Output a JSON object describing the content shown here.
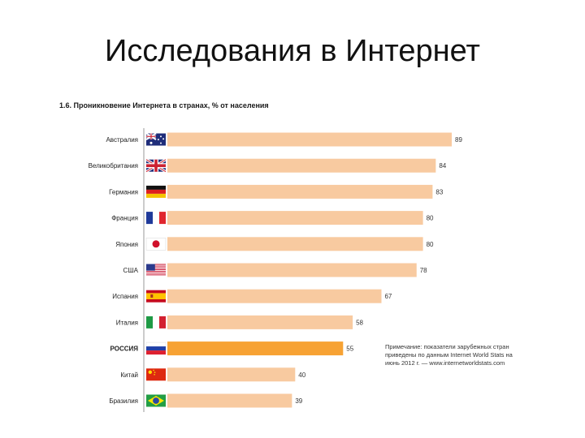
{
  "slide": {
    "title": "Исследования в Интернет"
  },
  "chart_note": "Примечание: показатели зарубежных стран приведены по данным Internet World Stats на июнь 2012 г. — www.internetworldstats.com",
  "colors": {
    "bar": "#f8caa0",
    "highlight": "#f7a233",
    "axis": "#999999"
  },
  "chart_data": {
    "type": "bar",
    "orientation": "horizontal",
    "title": "1.6. Проникновение Интернета в странах, % от населения",
    "xlabel": "",
    "ylabel": "",
    "xlim": [
      0,
      100
    ],
    "grid": false,
    "categories": [
      "Австралия",
      "Великобритания",
      "Германия",
      "Франция",
      "Япония",
      "США",
      "Испания",
      "Италия",
      "РОССИЯ",
      "Китай",
      "Бразилия"
    ],
    "values": [
      89,
      84,
      83,
      80,
      80,
      78,
      67,
      58,
      55,
      40,
      39
    ],
    "highlight_index": 8,
    "flags": [
      "australia-flag",
      "uk-flag",
      "germany-flag",
      "france-flag",
      "japan-flag",
      "usa-flag",
      "spain-flag",
      "italy-flag",
      "russia-flag",
      "china-flag",
      "brazil-flag"
    ]
  }
}
